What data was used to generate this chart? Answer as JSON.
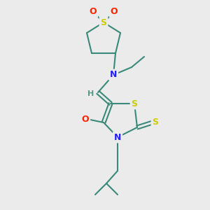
{
  "bg_color": "#ebebeb",
  "bond_color": "#3a8a7a",
  "atom_colors": {
    "S": "#cccc00",
    "O": "#ff2200",
    "N": "#2222ff",
    "H": "#5a9a8a"
  },
  "font_size": 9,
  "fig_size": [
    3.0,
    3.0
  ],
  "dpi": 100
}
